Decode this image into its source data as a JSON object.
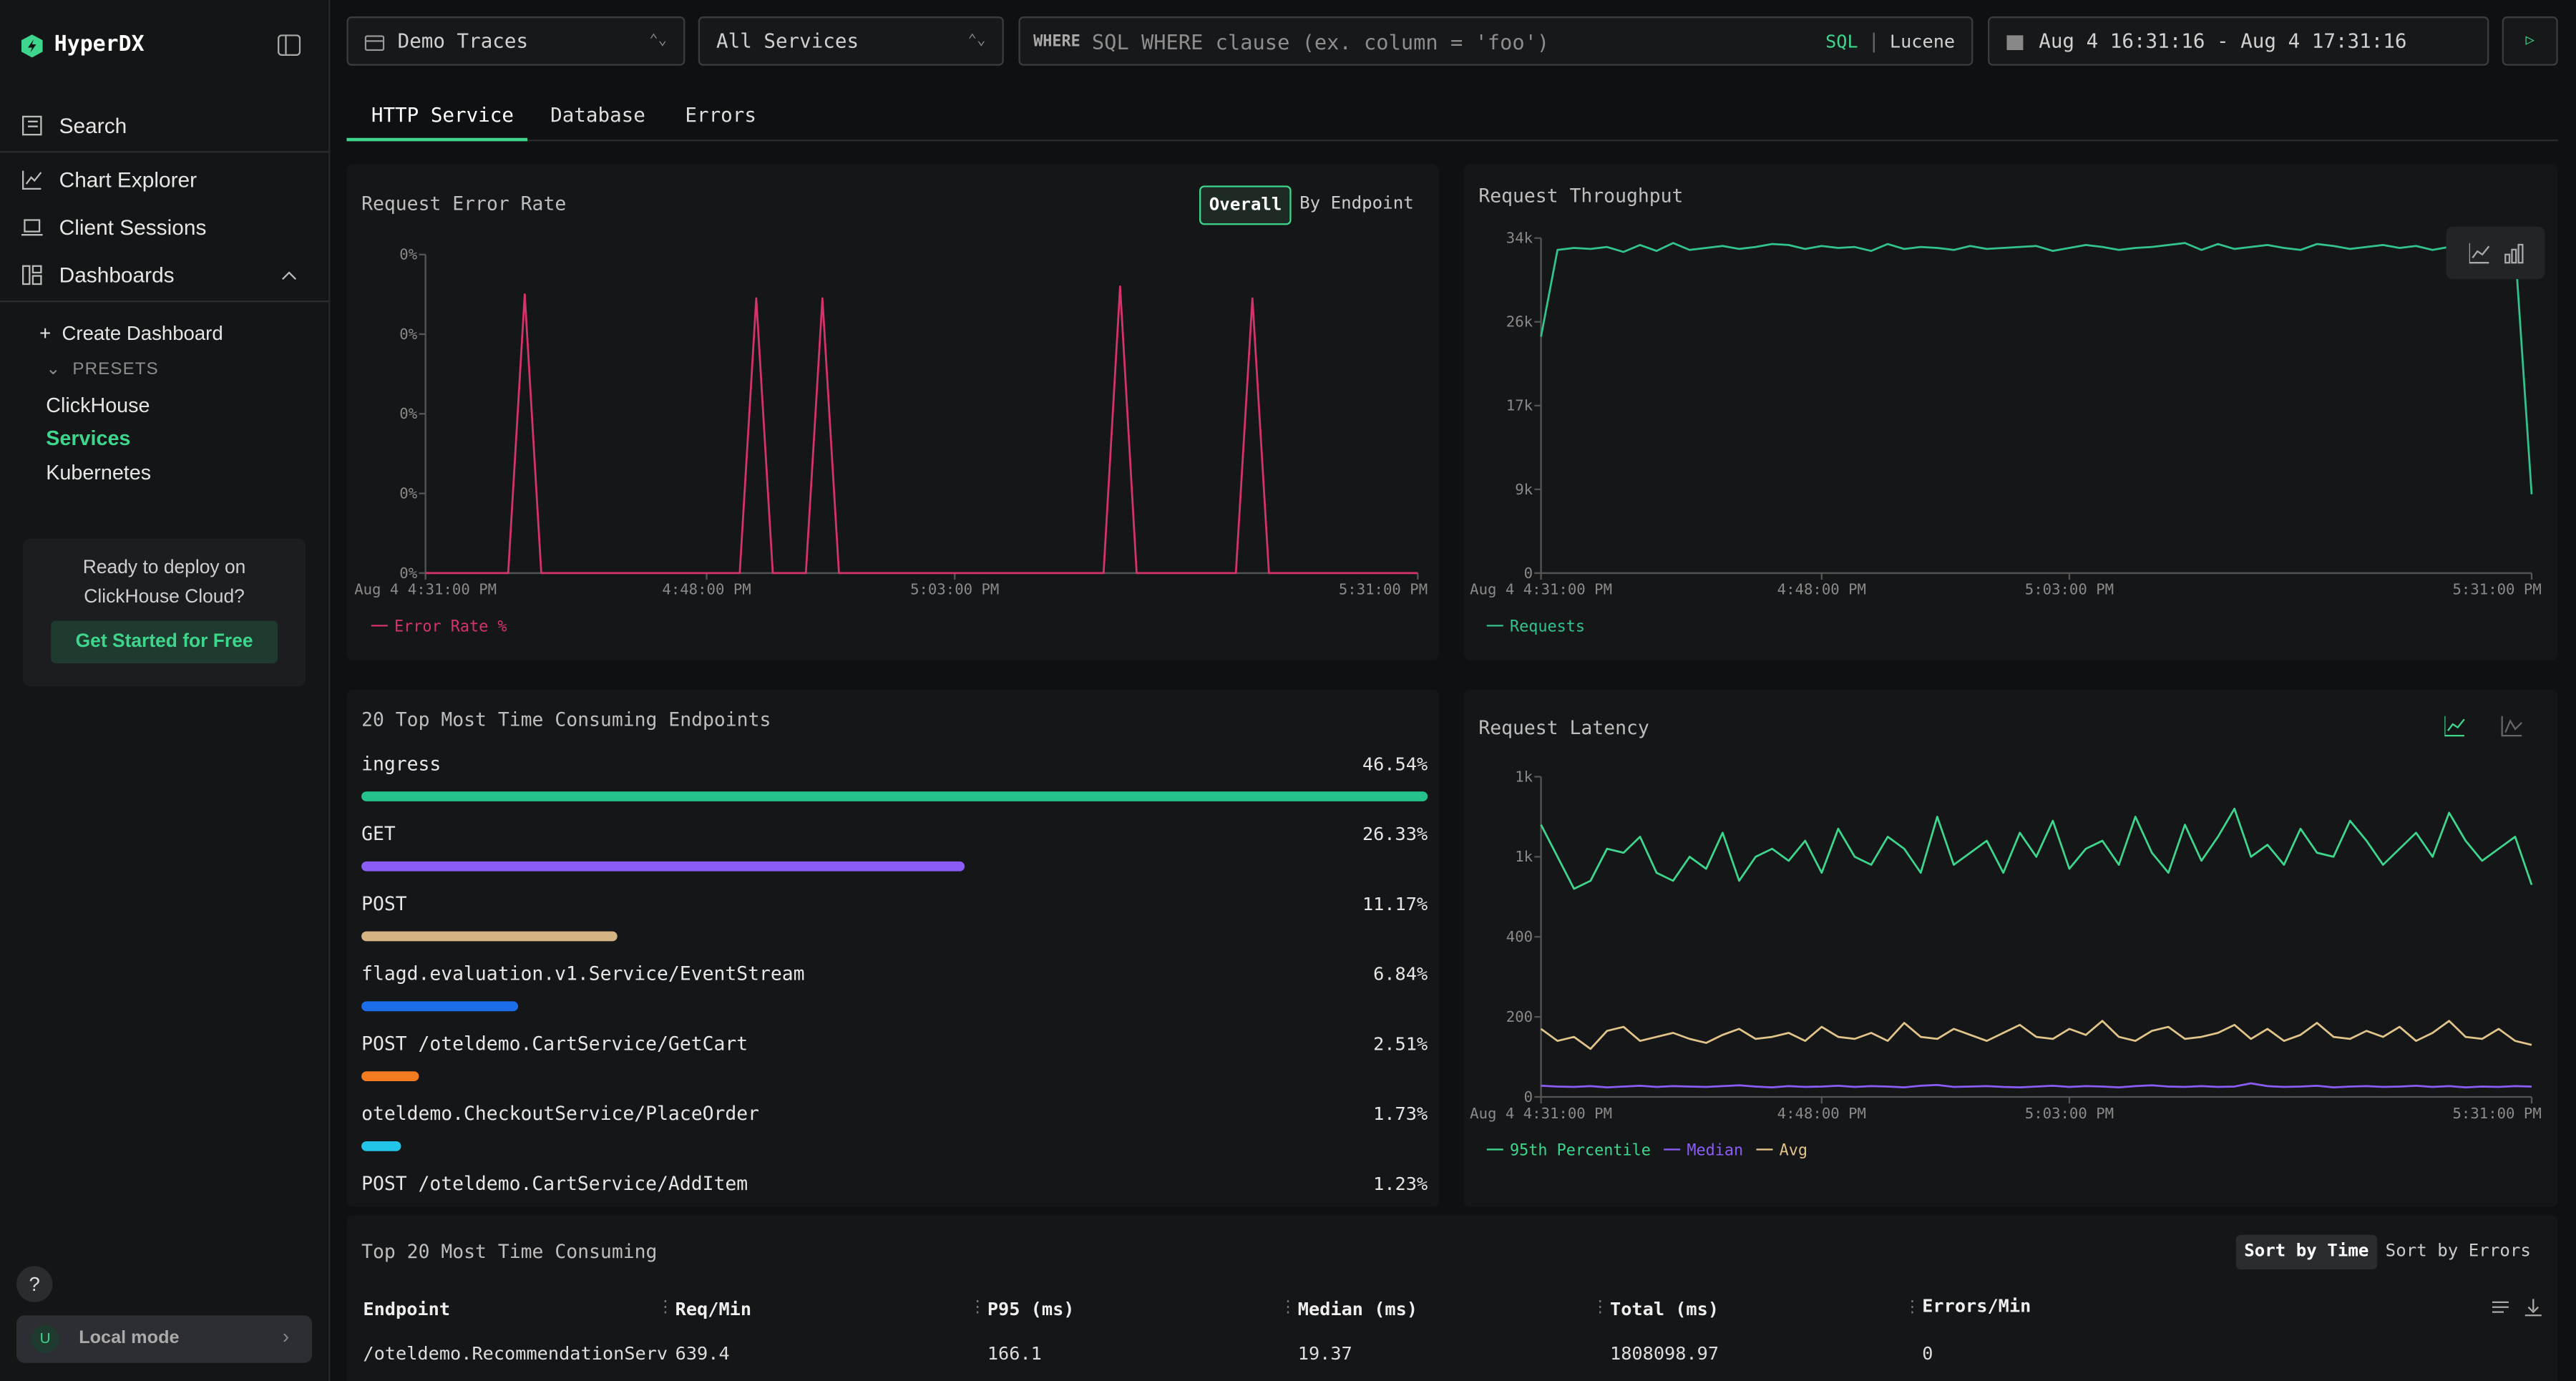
{
  "sidebar": {
    "brand": "HyperDX",
    "nav": [
      "Search",
      "Chart Explorer",
      "Client Sessions",
      "Dashboards"
    ],
    "create": "Create Dashboard",
    "presets_label": "PRESETS",
    "presets": [
      "ClickHouse",
      "Services",
      "Kubernetes"
    ],
    "promo_text": "Ready to deploy on ClickHouse Cloud?",
    "promo_button": "Get Started for Free",
    "help": "?",
    "user_initial": "U",
    "mode": "Local mode"
  },
  "toolbar": {
    "source": "Demo Traces",
    "service": "All Services",
    "where_label": "WHERE",
    "where_placeholder": "SQL WHERE clause (ex. column = 'foo')",
    "languages": [
      "SQL",
      "Lucene"
    ],
    "time_range": "Aug 4 16:31:16 - Aug 4 17:31:16"
  },
  "tabs": [
    "HTTP Service",
    "Database",
    "Errors"
  ],
  "toggle": [
    "Overall",
    "By Endpoint"
  ],
  "chart_data": [
    {
      "type": "line",
      "title": "Request Error Rate",
      "x": [
        991,
        992,
        993,
        994,
        995,
        996,
        997,
        998,
        999,
        1000,
        1001,
        1002,
        1003,
        1004,
        1005,
        1006,
        1007,
        1008,
        1009,
        1010,
        1011,
        1012,
        1013,
        1014,
        1015,
        1016,
        1017,
        1018,
        1019,
        1020,
        1021,
        1022,
        1023,
        1024,
        1025,
        1026,
        1027,
        1028,
        1029,
        1030,
        1031,
        1032,
        1033,
        1034,
        1035,
        1036,
        1037,
        1038,
        1039,
        1040,
        1041,
        1042,
        1043,
        1044,
        1045,
        1046,
        1047,
        1048,
        1049,
        1050,
        1051
      ],
      "xlim": [
        991,
        1051
      ],
      "xticks": [
        {
          "value": 991,
          "label": "Aug 4 4:31:00 PM"
        },
        {
          "value": 1008,
          "label": "4:48:00 PM"
        },
        {
          "value": 1023,
          "label": "5:03:00 PM"
        },
        {
          "value": 1051,
          "label": "5:31:00 PM"
        }
      ],
      "ylim": [
        0,
        0.04
      ],
      "yticks": [
        {
          "value": 0,
          "label": "0%"
        },
        {
          "value": 0.01,
          "label": "0%"
        },
        {
          "value": 0.02,
          "label": "0%"
        },
        {
          "value": 0.03,
          "label": "0%"
        },
        {
          "value": 0.04,
          "label": "0%"
        }
      ],
      "series": [
        {
          "name": "Error Rate %",
          "color": "#d6336c",
          "values": [
            0,
            0,
            0,
            0,
            0,
            0,
            0.035,
            0,
            0,
            0,
            0,
            0,
            0,
            0,
            0,
            0,
            0,
            0,
            0,
            0,
            0.0345,
            0,
            0,
            0,
            0.0345,
            0,
            0,
            0,
            0,
            0,
            0,
            0,
            0,
            0,
            0,
            0,
            0,
            0,
            0,
            0,
            0,
            0,
            0.036,
            0,
            0,
            0,
            0,
            0,
            0,
            0,
            0.0345,
            0,
            0,
            0,
            0,
            0,
            0,
            0,
            0,
            0,
            0
          ]
        }
      ]
    },
    {
      "type": "line",
      "title": "Request Throughput",
      "x": [
        991,
        992,
        993,
        994,
        995,
        996,
        997,
        998,
        999,
        1000,
        1001,
        1002,
        1003,
        1004,
        1005,
        1006,
        1007,
        1008,
        1009,
        1010,
        1011,
        1012,
        1013,
        1014,
        1015,
        1016,
        1017,
        1018,
        1019,
        1020,
        1021,
        1022,
        1023,
        1024,
        1025,
        1026,
        1027,
        1028,
        1029,
        1030,
        1031,
        1032,
        1033,
        1034,
        1035,
        1036,
        1037,
        1038,
        1039,
        1040,
        1041,
        1042,
        1043,
        1044,
        1045,
        1046,
        1047,
        1048,
        1049,
        1050,
        1051
      ],
      "xlim": [
        991,
        1051
      ],
      "xticks": [
        {
          "value": 991,
          "label": "Aug 4 4:31:00 PM"
        },
        {
          "value": 1008,
          "label": "4:48:00 PM"
        },
        {
          "value": 1023,
          "label": "5:03:00 PM"
        },
        {
          "value": 1051,
          "label": "5:31:00 PM"
        }
      ],
      "ylim": [
        0,
        34000
      ],
      "yticks": [
        0,
        {
          "value": 8500,
          "label": "9k"
        },
        {
          "value": 17000,
          "label": "17k"
        },
        {
          "value": 25500,
          "label": "26k"
        },
        {
          "value": 34000,
          "label": "34k"
        }
      ],
      "series": [
        {
          "name": "Requests",
          "color": "#33c48d",
          "values": [
            24000,
            32800,
            33000,
            32900,
            33100,
            32600,
            33300,
            32700,
            33500,
            32800,
            33000,
            33200,
            32900,
            33100,
            33400,
            33300,
            32900,
            33200,
            33000,
            33100,
            32700,
            33400,
            32900,
            33100,
            33000,
            32800,
            33200,
            32900,
            33000,
            33100,
            33200,
            32700,
            33000,
            33300,
            33100,
            32800,
            33000,
            33100,
            33300,
            33500,
            32800,
            33400,
            32900,
            33100,
            33300,
            33000,
            32800,
            33400,
            33200,
            32900,
            33100,
            33300,
            33000,
            33200,
            32800,
            33100,
            33000,
            33300,
            33100,
            32900,
            8000
          ]
        }
      ]
    },
    {
      "type": "line",
      "title": "Request Latency",
      "x": [
        991,
        992,
        993,
        994,
        995,
        996,
        997,
        998,
        999,
        1000,
        1001,
        1002,
        1003,
        1004,
        1005,
        1006,
        1007,
        1008,
        1009,
        1010,
        1011,
        1012,
        1013,
        1014,
        1015,
        1016,
        1017,
        1018,
        1019,
        1020,
        1021,
        1022,
        1023,
        1024,
        1025,
        1026,
        1027,
        1028,
        1029,
        1030,
        1031,
        1032,
        1033,
        1034,
        1035,
        1036,
        1037,
        1038,
        1039,
        1040,
        1041,
        1042,
        1043,
        1044,
        1045,
        1046,
        1047,
        1048,
        1049,
        1050,
        1051
      ],
      "xlim": [
        991,
        1051
      ],
      "xticks": [
        {
          "value": 991,
          "label": "Aug 4 4:31:00 PM"
        },
        {
          "value": 1008,
          "label": "4:48:00 PM"
        },
        {
          "value": 1023,
          "label": "5:03:00 PM"
        },
        {
          "value": 1051,
          "label": "5:31:00 PM"
        }
      ],
      "ylim": [
        0,
        800
      ],
      "yticks": [
        0,
        200,
        400,
        {
          "value": 600,
          "label": "1k"
        },
        {
          "value": 800,
          "label": "1k"
        }
      ],
      "series": [
        {
          "name": "95th Percentile",
          "color": "#3dd68c",
          "values": [
            680,
            600,
            520,
            540,
            620,
            610,
            650,
            560,
            540,
            600,
            570,
            660,
            540,
            600,
            620,
            590,
            640,
            560,
            670,
            600,
            580,
            650,
            620,
            560,
            700,
            580,
            610,
            640,
            560,
            660,
            600,
            690,
            570,
            620,
            640,
            580,
            700,
            610,
            560,
            680,
            590,
            650,
            720,
            600,
            630,
            580,
            670,
            610,
            600,
            690,
            640,
            580,
            620,
            660,
            600,
            710,
            640,
            590,
            620,
            650,
            530
          ]
        },
        {
          "name": "Median",
          "color": "#8b5cf6",
          "values": [
            28,
            26,
            25,
            27,
            24,
            26,
            28,
            25,
            27,
            26,
            25,
            27,
            29,
            26,
            24,
            27,
            25,
            26,
            28,
            25,
            27,
            26,
            24,
            28,
            30,
            25,
            26,
            27,
            25,
            24,
            26,
            28,
            25,
            27,
            26,
            24,
            27,
            29,
            26,
            25,
            27,
            25,
            26,
            34,
            27,
            25,
            26,
            28,
            24,
            26,
            27,
            25,
            26,
            28,
            25,
            27,
            24,
            26,
            25,
            27,
            26
          ]
        },
        {
          "name": "Avg",
          "color": "#e0c48a",
          "values": [
            170,
            140,
            150,
            120,
            165,
            175,
            140,
            150,
            160,
            145,
            135,
            155,
            170,
            145,
            150,
            160,
            140,
            175,
            150,
            145,
            160,
            140,
            185,
            150,
            145,
            170,
            155,
            140,
            160,
            180,
            150,
            145,
            170,
            155,
            190,
            150,
            140,
            165,
            175,
            145,
            150,
            160,
            180,
            145,
            170,
            140,
            155,
            185,
            150,
            145,
            165,
            150,
            175,
            140,
            160,
            190,
            150,
            145,
            170,
            140,
            130
          ]
        }
      ]
    },
    {
      "type": "bar",
      "title": "20 Top Most Time Consuming Endpoints",
      "categories": [
        "ingress",
        "GET",
        "POST",
        "flagd.evaluation.v1.Service/EventStream",
        "POST /oteldemo.CartService/GetCart",
        "oteldemo.CheckoutService/PlaceOrder",
        "POST /oteldemo.CartService/AddItem"
      ],
      "values": [
        46.54,
        26.33,
        11.17,
        6.84,
        2.51,
        1.73,
        1.23
      ],
      "value_labels": [
        "46.54%",
        "26.33%",
        "11.17%",
        "6.84%",
        "2.51%",
        "1.73%",
        "1.23%"
      ],
      "colors": [
        "#25c28b",
        "#8b5cf6",
        "#d4b483",
        "#1c6ee8",
        "#f47c20",
        "#22c5e8",
        "#e64980"
      ],
      "xlim": [
        0,
        46.54
      ]
    }
  ],
  "table": {
    "title": "Top 20 Most Time Consuming",
    "sort": [
      "Sort by Time",
      "Sort by Errors"
    ],
    "columns": [
      "Endpoint",
      "Req/Min",
      "P95 (ms)",
      "Median (ms)",
      "Total (ms)",
      "Errors/Min"
    ],
    "rows": [
      [
        "/oteldemo.RecommendationServ",
        639.4,
        166.1,
        19.37,
        1808098.97,
        0
      ]
    ]
  }
}
